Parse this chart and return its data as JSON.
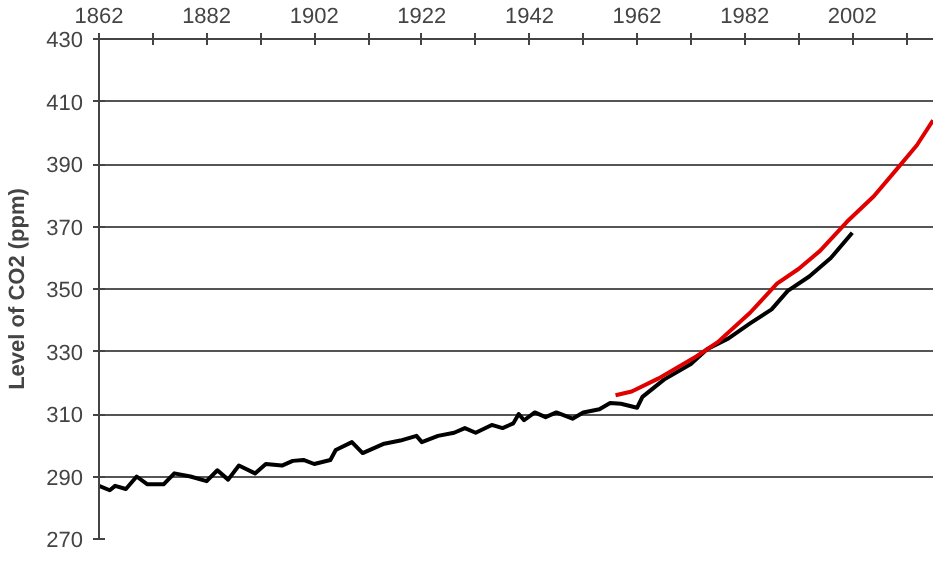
{
  "chart_data": {
    "type": "line",
    "ylabel": "Level of CO2 (ppm)",
    "xlim": [
      1862,
      2017
    ],
    "ylim": [
      270,
      430
    ],
    "xticks": [
      1862,
      {
        "value": 1872,
        "label": null
      },
      1882,
      {
        "value": 1892,
        "label": null
      },
      1902,
      {
        "value": 1912,
        "label": null
      },
      1922,
      {
        "value": 1932,
        "label": null
      },
      1942,
      {
        "value": 1952,
        "label": null
      },
      1962,
      {
        "value": 1972,
        "label": null
      },
      1982,
      {
        "value": 1992,
        "label": null
      },
      2002,
      {
        "value": 2012,
        "label": null
      }
    ],
    "yticks": [
      270,
      290,
      310,
      330,
      350,
      370,
      390,
      410,
      430
    ],
    "grid": "y",
    "marker": "none",
    "line_style": "solid",
    "series": [
      {
        "color": "#000000",
        "x": [
          1862,
          1864,
          1865,
          1867,
          1869,
          1871,
          1874,
          1876,
          1879,
          1882,
          1884,
          1886,
          1888,
          1891,
          1893,
          1896,
          1898,
          1900,
          1902,
          1905,
          1906,
          1909,
          1911,
          1915,
          1918,
          1921,
          1922,
          1925,
          1928,
          1930,
          1932,
          1935,
          1937,
          1939,
          1940,
          1941,
          1943,
          1945,
          1947,
          1950,
          1952,
          1955,
          1957,
          1959,
          1962,
          1963,
          1967,
          1972,
          1975,
          1979,
          1983,
          1987,
          1990,
          1994,
          1998,
          2002
        ],
        "values": [
          287,
          285.6,
          287,
          286,
          290,
          287.5,
          287.5,
          291,
          290,
          288.5,
          292,
          289,
          293.5,
          291,
          294,
          293.5,
          295,
          295.3,
          294,
          295.3,
          298.5,
          301,
          297.5,
          300.5,
          301.5,
          303,
          301,
          303,
          304,
          305.5,
          304,
          306.5,
          305.5,
          307,
          310,
          308,
          310.5,
          309,
          310.5,
          308.5,
          310.5,
          311.5,
          313.5,
          313.3,
          312,
          315.5,
          321,
          326,
          330.7,
          334.2,
          339,
          343.5,
          349.4,
          354,
          359.9,
          368
        ]
      },
      {
        "color": "#e00000",
        "x": [
          1958,
          1961,
          1966,
          1973,
          1977,
          1983,
          1988,
          1992,
          1996,
          2001,
          2006,
          2010,
          2014,
          2017
        ],
        "values": [
          316,
          317.2,
          321.4,
          328.4,
          333,
          342.4,
          351.7,
          356.4,
          362.2,
          371.5,
          379.7,
          387.8,
          396,
          404
        ]
      }
    ]
  }
}
